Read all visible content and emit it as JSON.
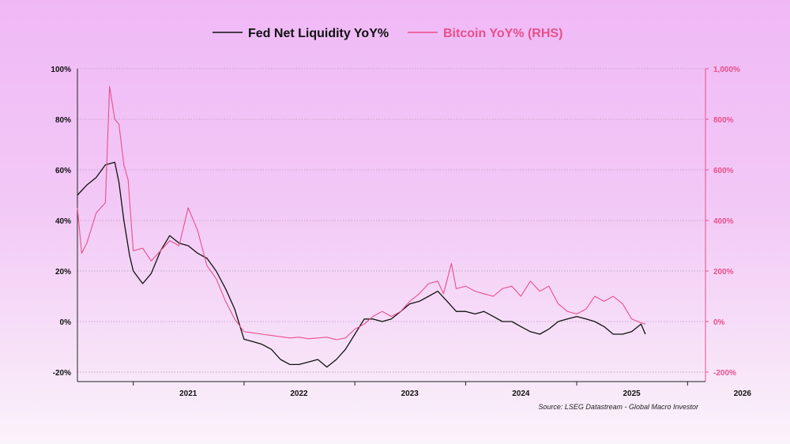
{
  "chart_data": {
    "type": "line",
    "x_axis": {
      "range": [
        "2020-07-01",
        "2026-03-01"
      ],
      "tick_labels": [
        "2021",
        "2022",
        "2023",
        "2024",
        "2025",
        "2026"
      ]
    },
    "y_axis_left": {
      "range": [
        -20,
        100
      ],
      "ticks": [
        100,
        80,
        60,
        40,
        20,
        0,
        -20
      ],
      "tick_labels": [
        "100%",
        "80%",
        "60%",
        "40%",
        "20%",
        "0%",
        "-20%"
      ]
    },
    "y_axis_right": {
      "range": [
        -200,
        1000
      ],
      "ticks": [
        1000,
        800,
        600,
        400,
        200,
        0,
        -200
      ],
      "tick_labels": [
        "1,000%",
        "800%",
        "600%",
        "400%",
        "200%",
        "0%",
        "-200%"
      ]
    },
    "grid": "horizontal dotted",
    "legend_position": "top-center",
    "series": [
      {
        "name": "Fed Net Liquidity YoY%",
        "axis": "left",
        "color": "#111111",
        "points": [
          [
            "2020-07-01",
            50
          ],
          [
            "2020-08-01",
            54
          ],
          [
            "2020-09-01",
            57
          ],
          [
            "2020-10-01",
            62
          ],
          [
            "2020-11-01",
            63
          ],
          [
            "2020-11-15",
            55
          ],
          [
            "2020-12-01",
            40
          ],
          [
            "2020-12-20",
            26
          ],
          [
            "2021-01-01",
            20
          ],
          [
            "2021-02-01",
            15
          ],
          [
            "2021-03-01",
            19
          ],
          [
            "2021-04-01",
            28
          ],
          [
            "2021-05-01",
            34
          ],
          [
            "2021-06-01",
            31
          ],
          [
            "2021-07-01",
            30
          ],
          [
            "2021-08-01",
            27
          ],
          [
            "2021-09-01",
            25
          ],
          [
            "2021-10-01",
            20
          ],
          [
            "2021-11-01",
            13
          ],
          [
            "2021-12-01",
            5
          ],
          [
            "2022-01-01",
            -7
          ],
          [
            "2022-02-01",
            -8
          ],
          [
            "2022-03-01",
            -9
          ],
          [
            "2022-04-01",
            -11
          ],
          [
            "2022-05-01",
            -15
          ],
          [
            "2022-06-01",
            -17
          ],
          [
            "2022-07-01",
            -17
          ],
          [
            "2022-08-01",
            -16
          ],
          [
            "2022-09-01",
            -15
          ],
          [
            "2022-10-01",
            -18
          ],
          [
            "2022-11-01",
            -15
          ],
          [
            "2022-12-01",
            -11
          ],
          [
            "2023-01-01",
            -5
          ],
          [
            "2023-02-01",
            1
          ],
          [
            "2023-03-01",
            1
          ],
          [
            "2023-04-01",
            0
          ],
          [
            "2023-05-01",
            1
          ],
          [
            "2023-06-01",
            4
          ],
          [
            "2023-07-01",
            7
          ],
          [
            "2023-08-01",
            8
          ],
          [
            "2023-09-01",
            10
          ],
          [
            "2023-10-01",
            12
          ],
          [
            "2023-11-01",
            8
          ],
          [
            "2023-12-01",
            4
          ],
          [
            "2024-01-01",
            4
          ],
          [
            "2024-02-01",
            3
          ],
          [
            "2024-03-01",
            4
          ],
          [
            "2024-04-01",
            2
          ],
          [
            "2024-05-01",
            0
          ],
          [
            "2024-06-01",
            0
          ],
          [
            "2024-07-01",
            -2
          ],
          [
            "2024-08-01",
            -4
          ],
          [
            "2024-09-01",
            -5
          ],
          [
            "2024-10-01",
            -3
          ],
          [
            "2024-11-01",
            0
          ],
          [
            "2024-12-01",
            1
          ],
          [
            "2025-01-01",
            2
          ],
          [
            "2025-02-01",
            1
          ],
          [
            "2025-03-01",
            0
          ],
          [
            "2025-04-01",
            -2
          ],
          [
            "2025-05-01",
            -5
          ],
          [
            "2025-06-01",
            -5
          ],
          [
            "2025-07-01",
            -4
          ],
          [
            "2025-08-01",
            -1
          ],
          [
            "2025-08-15",
            -5
          ]
        ]
      },
      {
        "name": "Bitcoin YoY% (RHS)",
        "axis": "right",
        "color": "#e8508c",
        "points": [
          [
            "2020-07-01",
            450
          ],
          [
            "2020-07-15",
            270
          ],
          [
            "2020-08-01",
            310
          ],
          [
            "2020-09-01",
            430
          ],
          [
            "2020-10-01",
            470
          ],
          [
            "2020-10-15",
            930
          ],
          [
            "2020-11-01",
            800
          ],
          [
            "2020-11-15",
            780
          ],
          [
            "2020-12-01",
            620
          ],
          [
            "2020-12-15",
            560
          ],
          [
            "2021-01-01",
            280
          ],
          [
            "2021-02-01",
            290
          ],
          [
            "2021-03-01",
            240
          ],
          [
            "2021-04-01",
            280
          ],
          [
            "2021-05-01",
            320
          ],
          [
            "2021-06-01",
            300
          ],
          [
            "2021-07-01",
            450
          ],
          [
            "2021-08-01",
            360
          ],
          [
            "2021-09-01",
            220
          ],
          [
            "2021-10-01",
            170
          ],
          [
            "2021-11-01",
            80
          ],
          [
            "2021-12-01",
            10
          ],
          [
            "2022-01-01",
            -40
          ],
          [
            "2022-02-01",
            -45
          ],
          [
            "2022-03-01",
            -50
          ],
          [
            "2022-04-01",
            -55
          ],
          [
            "2022-05-01",
            -60
          ],
          [
            "2022-06-01",
            -65
          ],
          [
            "2022-07-01",
            -62
          ],
          [
            "2022-08-01",
            -68
          ],
          [
            "2022-09-01",
            -65
          ],
          [
            "2022-10-01",
            -62
          ],
          [
            "2022-11-01",
            -72
          ],
          [
            "2022-12-01",
            -65
          ],
          [
            "2023-01-01",
            -30
          ],
          [
            "2023-02-01",
            -10
          ],
          [
            "2023-03-01",
            20
          ],
          [
            "2023-04-01",
            40
          ],
          [
            "2023-05-01",
            20
          ],
          [
            "2023-06-01",
            40
          ],
          [
            "2023-07-01",
            80
          ],
          [
            "2023-08-01",
            110
          ],
          [
            "2023-09-01",
            150
          ],
          [
            "2023-10-01",
            160
          ],
          [
            "2023-10-20",
            110
          ],
          [
            "2023-11-15",
            230
          ],
          [
            "2023-12-01",
            130
          ],
          [
            "2024-01-01",
            140
          ],
          [
            "2024-02-01",
            120
          ],
          [
            "2024-03-01",
            110
          ],
          [
            "2024-04-01",
            100
          ],
          [
            "2024-05-01",
            130
          ],
          [
            "2024-06-01",
            140
          ],
          [
            "2024-07-01",
            100
          ],
          [
            "2024-08-01",
            160
          ],
          [
            "2024-09-01",
            120
          ],
          [
            "2024-10-01",
            140
          ],
          [
            "2024-11-01",
            70
          ],
          [
            "2024-12-01",
            40
          ],
          [
            "2025-01-01",
            30
          ],
          [
            "2025-02-01",
            50
          ],
          [
            "2025-03-01",
            100
          ],
          [
            "2025-04-01",
            80
          ],
          [
            "2025-05-01",
            100
          ],
          [
            "2025-06-01",
            70
          ],
          [
            "2025-07-01",
            10
          ],
          [
            "2025-08-01",
            -5
          ],
          [
            "2025-08-15",
            -10
          ]
        ]
      }
    ],
    "source": "Source: LSEG Datastream - Global Macro Investor"
  }
}
